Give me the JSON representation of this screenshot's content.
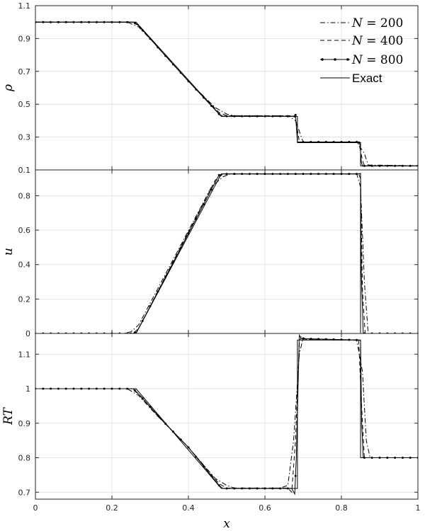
{
  "chart_data": {
    "type": "line",
    "x_axis": {
      "label": "x",
      "lim": [
        0,
        1
      ],
      "ticks": [
        0,
        0.2,
        0.4,
        0.6,
        0.8,
        1
      ],
      "tick_labels": [
        "0",
        "0.2",
        "0.4",
        "0.6",
        "0.8",
        "1"
      ]
    },
    "grid": true,
    "legend": {
      "placement": "top-right",
      "entries": [
        {
          "label": "N = 200",
          "style": "dash-dot",
          "var": "N",
          "num": "200"
        },
        {
          "label": "N = 400",
          "style": "dashed",
          "var": "N",
          "num": "400"
        },
        {
          "label": "N = 800",
          "style": "solid-dot",
          "var": "N",
          "num": "800"
        },
        {
          "label": "Exact",
          "style": "solid"
        }
      ]
    },
    "panels": [
      {
        "id": "rho",
        "ylabel": "ρ",
        "ylim": [
          0.1,
          1.1
        ],
        "yticks": [
          0.1,
          0.3,
          0.5,
          0.7,
          0.9,
          1.1
        ],
        "ytick_labels": [
          "0.1",
          "0.3",
          "0.5",
          "0.7",
          "0.9",
          "1.1"
        ],
        "series": [
          {
            "name": "Exact",
            "x": [
              0,
              0.263,
              0.486,
              0.685,
              0.685,
              0.85,
              0.85,
              1
            ],
            "y": [
              1.0,
              1.0,
              0.426,
              0.426,
              0.266,
              0.266,
              0.125,
              0.125
            ]
          },
          {
            "name": "N = 200",
            "x": [
              0,
              0.24,
              0.27,
              0.32,
              0.4,
              0.47,
              0.5,
              0.52,
              0.66,
              0.68,
              0.7,
              0.84,
              0.86,
              0.87,
              1
            ],
            "y": [
              1.0,
              1.0,
              0.97,
              0.85,
              0.64,
              0.48,
              0.44,
              0.43,
              0.43,
              0.4,
              0.27,
              0.27,
              0.2,
              0.13,
              0.125
            ]
          },
          {
            "name": "N = 400",
            "x": [
              0,
              0.25,
              0.27,
              0.33,
              0.4,
              0.48,
              0.5,
              0.67,
              0.68,
              0.69,
              0.845,
              0.855,
              0.86,
              1
            ],
            "y": [
              1.0,
              1.0,
              0.98,
              0.82,
              0.64,
              0.45,
              0.43,
              0.43,
              0.42,
              0.27,
              0.27,
              0.16,
              0.125,
              0.125
            ]
          },
          {
            "name": "N = 800",
            "x": [
              0,
              0.255,
              0.265,
              0.33,
              0.4,
              0.48,
              0.49,
              0.675,
              0.68,
              0.685,
              0.848,
              0.852,
              0.855,
              1
            ],
            "y": [
              1.0,
              1.0,
              0.99,
              0.82,
              0.64,
              0.44,
              0.427,
              0.427,
              0.435,
              0.27,
              0.27,
              0.15,
              0.125,
              0.125
            ],
            "markers": true
          }
        ]
      },
      {
        "id": "u",
        "ylabel": "u",
        "ylim": [
          0,
          0.95
        ],
        "yticks": [
          0,
          0.2,
          0.4,
          0.6,
          0.8
        ],
        "ytick_labels": [
          "0",
          "0.2",
          "0.4",
          "0.6",
          "0.8"
        ],
        "series": [
          {
            "name": "Exact",
            "x": [
              0,
              0.263,
              0.486,
              0.85,
              0.85,
              1
            ],
            "y": [
              0,
              0,
              0.927,
              0.927,
              0,
              0
            ]
          },
          {
            "name": "N = 200",
            "x": [
              0,
              0.23,
              0.25,
              0.27,
              0.46,
              0.49,
              0.51,
              0.84,
              0.85,
              0.86,
              0.87,
              1
            ],
            "y": [
              0,
              0,
              0.01,
              0.05,
              0.85,
              0.91,
              0.927,
              0.927,
              0.85,
              0.3,
              0,
              0
            ]
          },
          {
            "name": "N = 400",
            "x": [
              0,
              0.245,
              0.26,
              0.27,
              0.47,
              0.49,
              0.5,
              0.845,
              0.85,
              0.855,
              0.862,
              1
            ],
            "y": [
              0,
              0,
              0.01,
              0.03,
              0.89,
              0.925,
              0.927,
              0.927,
              0.9,
              0.25,
              0,
              0
            ]
          },
          {
            "name": "N = 800",
            "x": [
              0,
              0.255,
              0.265,
              0.48,
              0.49,
              0.845,
              0.85,
              0.852,
              0.857,
              1
            ],
            "y": [
              0,
              0,
              0.01,
              0.92,
              0.927,
              0.927,
              0.93,
              0.35,
              0,
              0
            ],
            "markers": true
          }
        ]
      },
      {
        "id": "RT",
        "ylabel": "RT",
        "ylim": [
          0.68,
          1.16
        ],
        "yticks": [
          0.7,
          0.8,
          0.9,
          1,
          1.1
        ],
        "ytick_labels": [
          "0.7",
          "0.8",
          "0.9",
          "1",
          "1.1"
        ],
        "series": [
          {
            "name": "Exact",
            "x": [
              0,
              0.263,
              0.486,
              0.685,
              0.685,
              0.85,
              0.85,
              1
            ],
            "y": [
              1.0,
              1.0,
              0.711,
              0.711,
              1.141,
              1.141,
              0.8,
              0.8
            ]
          },
          {
            "name": "N = 200",
            "x": [
              0,
              0.24,
              0.27,
              0.32,
              0.4,
              0.47,
              0.5,
              0.52,
              0.64,
              0.66,
              0.675,
              0.69,
              0.7,
              0.71,
              0.84,
              0.855,
              0.865,
              0.875,
              1
            ],
            "y": [
              1.0,
              1.0,
              0.98,
              0.92,
              0.83,
              0.74,
              0.72,
              0.712,
              0.712,
              0.72,
              0.85,
              1.1,
              1.148,
              1.142,
              1.141,
              1.05,
              0.85,
              0.8,
              0.8
            ]
          },
          {
            "name": "N = 400",
            "x": [
              0,
              0.25,
              0.27,
              0.33,
              0.4,
              0.48,
              0.5,
              0.66,
              0.67,
              0.68,
              0.69,
              0.695,
              0.7,
              0.845,
              0.855,
              0.86,
              1
            ],
            "y": [
              1.0,
              1.0,
              0.985,
              0.91,
              0.83,
              0.725,
              0.712,
              0.712,
              0.7,
              0.85,
              1.13,
              1.153,
              1.144,
              1.141,
              0.9,
              0.8,
              0.8
            ]
          },
          {
            "name": "N = 800",
            "x": [
              0,
              0.255,
              0.265,
              0.33,
              0.4,
              0.48,
              0.49,
              0.67,
              0.678,
              0.682,
              0.69,
              0.695,
              0.845,
              0.85,
              0.853,
              0.857,
              1
            ],
            "y": [
              1.0,
              1.0,
              0.99,
              0.91,
              0.83,
              0.72,
              0.711,
              0.711,
              0.695,
              0.8,
              1.155,
              1.145,
              1.141,
              1.14,
              0.9,
              0.8,
              0.8
            ],
            "markers": true
          }
        ]
      }
    ]
  }
}
